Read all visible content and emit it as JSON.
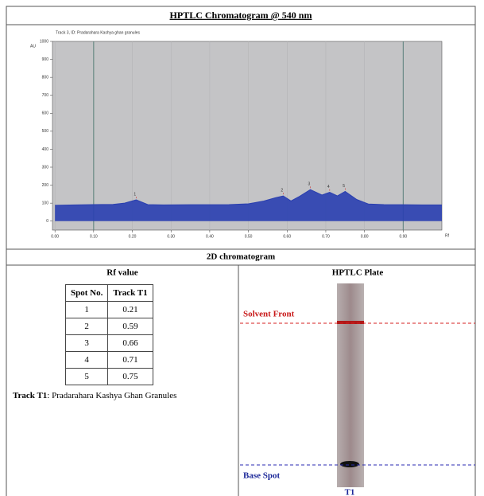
{
  "header": {
    "title": "HPTLC Chromatogram @ 540 nm"
  },
  "chart_data": {
    "type": "area",
    "subtitle": "Track 3, ID: Pradarahara Kashya ghan granules",
    "ylabel": "AU",
    "xlabel": "Rf",
    "x": [
      0.0,
      0.05,
      0.1,
      0.15,
      0.18,
      0.21,
      0.24,
      0.28,
      0.35,
      0.45,
      0.5,
      0.54,
      0.57,
      0.59,
      0.61,
      0.63,
      0.66,
      0.69,
      0.71,
      0.73,
      0.75,
      0.78,
      0.81,
      0.85,
      0.9,
      0.95,
      1.0
    ],
    "series": [
      {
        "color": "#2a3fb0",
        "values": [
          88,
          90,
          92,
          93,
          100,
          118,
          92,
          90,
          91,
          92,
          96,
          112,
          130,
          140,
          112,
          135,
          175,
          145,
          160,
          140,
          165,
          120,
          95,
          92,
          91,
          90,
          90
        ]
      }
    ],
    "peaks": {
      "labels": [
        "1",
        "2",
        "3",
        "4",
        "5"
      ],
      "x": [
        0.21,
        0.59,
        0.66,
        0.71,
        0.75
      ],
      "values": [
        118,
        140,
        175,
        160,
        165
      ]
    },
    "xlim": [
      -0.0065,
      1.0
    ],
    "ylim": [
      -50,
      1000
    ],
    "xticks": [
      {
        "value": 0.0,
        "label": "0.00"
      },
      {
        "value": 0.1,
        "label": "0.10"
      },
      {
        "value": 0.2,
        "label": "0.20"
      },
      {
        "value": 0.3,
        "label": "0.30"
      },
      {
        "value": 0.4,
        "label": "0.40"
      },
      {
        "value": 0.5,
        "label": "0.50"
      },
      {
        "value": 0.6,
        "label": "0.60"
      },
      {
        "value": 0.7,
        "label": "0.70"
      },
      {
        "value": 0.8,
        "label": "0.80"
      },
      {
        "value": 0.9,
        "label": "0.90"
      }
    ],
    "yticks": [
      0,
      100,
      200,
      300,
      400,
      500,
      600,
      700,
      800,
      900,
      1000
    ],
    "markers": [
      0.1,
      0.9
    ]
  },
  "section2": {
    "title": "2D chromatogram"
  },
  "rf_table": {
    "title": "Rf value",
    "header": [
      "Spot No.",
      "Track T1"
    ],
    "rows": [
      [
        "1",
        "0.21"
      ],
      [
        "2",
        "0.59"
      ],
      [
        "3",
        "0.66"
      ],
      [
        "4",
        "0.71"
      ],
      [
        "5",
        "0.75"
      ]
    ]
  },
  "track_note": {
    "label": "Track T1",
    "text": ": Pradarahara Kashya Ghan Granules"
  },
  "plate": {
    "title": "HPTLC Plate",
    "solvent_front": "Solvent Front",
    "base_spot": "Base Spot",
    "track": "T1"
  }
}
